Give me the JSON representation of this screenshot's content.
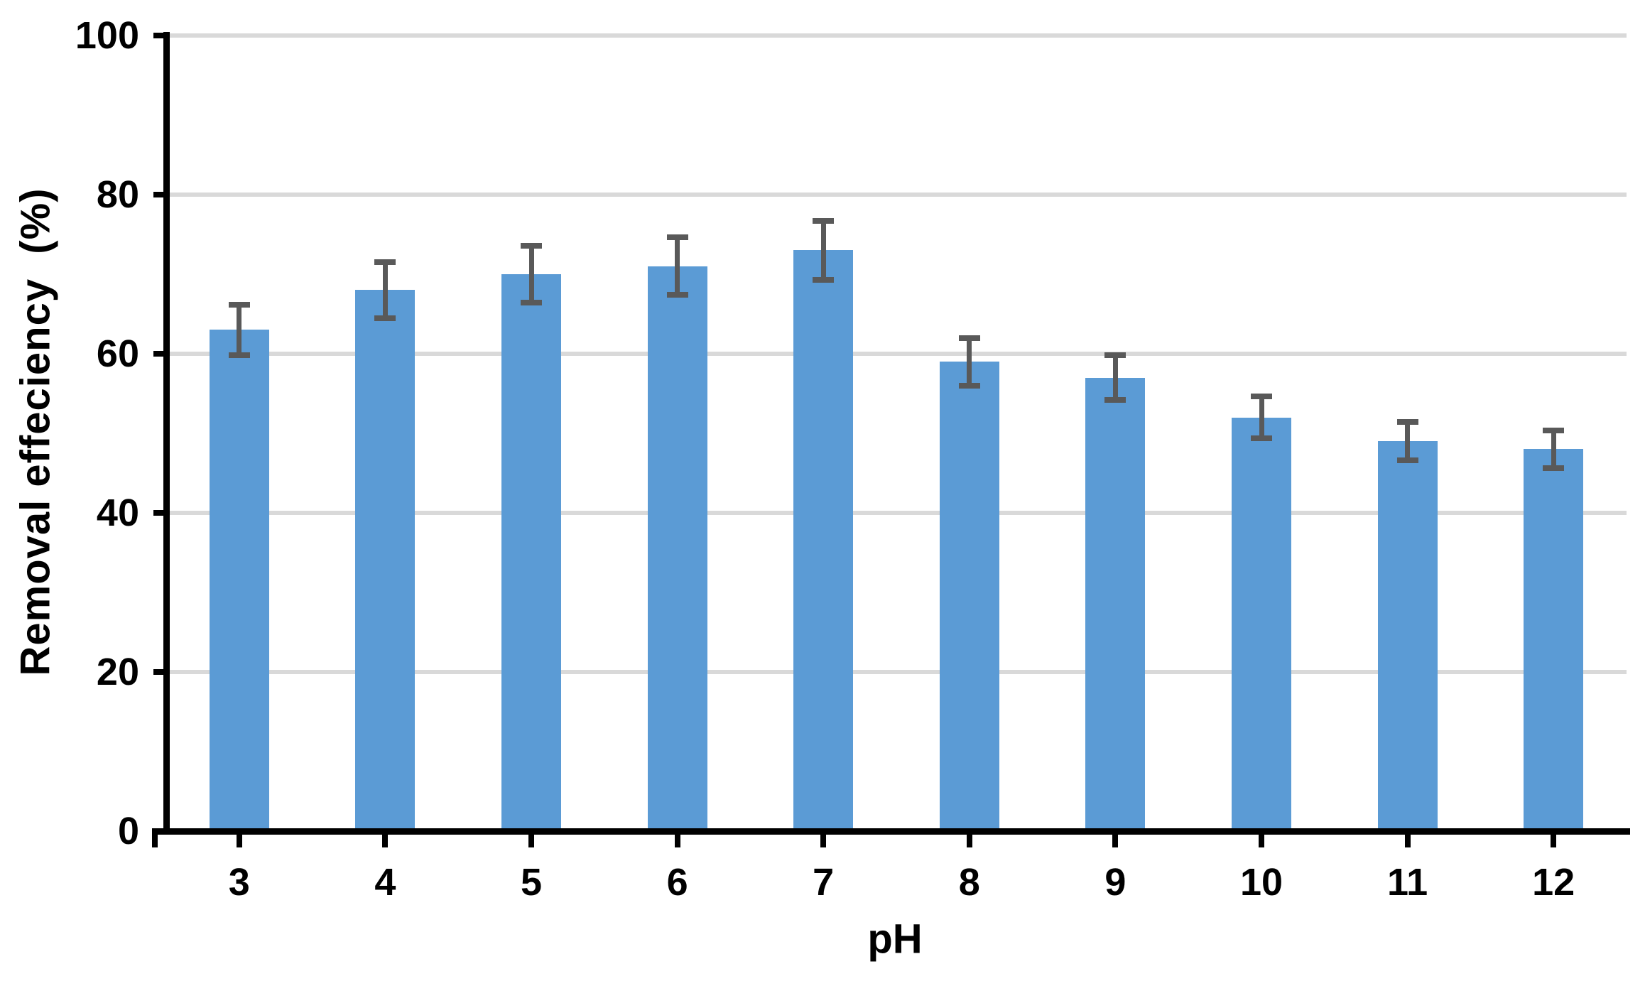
{
  "chart_data": {
    "type": "bar",
    "title": "",
    "xlabel": "pH",
    "ylabel": "Removal effeciency  (%)",
    "categories": [
      "3",
      "4",
      "5",
      "6",
      "7",
      "8",
      "9",
      "10",
      "11",
      "12"
    ],
    "series": [
      {
        "name": "Removal effeciency",
        "values": [
          63,
          68,
          70,
          71,
          73,
          59,
          57,
          52,
          49,
          48
        ],
        "error_bars": [
          3.2,
          3.5,
          3.6,
          3.6,
          3.7,
          3.0,
          2.8,
          2.6,
          2.4,
          2.4
        ]
      }
    ],
    "ylim": [
      0,
      100
    ],
    "yticks": [
      0,
      20,
      40,
      60,
      80,
      100
    ],
    "grid": "horizontal-only",
    "legend_position": "none",
    "colors": {
      "bar_fill": "#5B9BD5",
      "error_bar": "#595959",
      "gridline": "#D9D9D9",
      "axis_line": "#000000",
      "text": "#000000",
      "background": "#ffffff"
    }
  }
}
